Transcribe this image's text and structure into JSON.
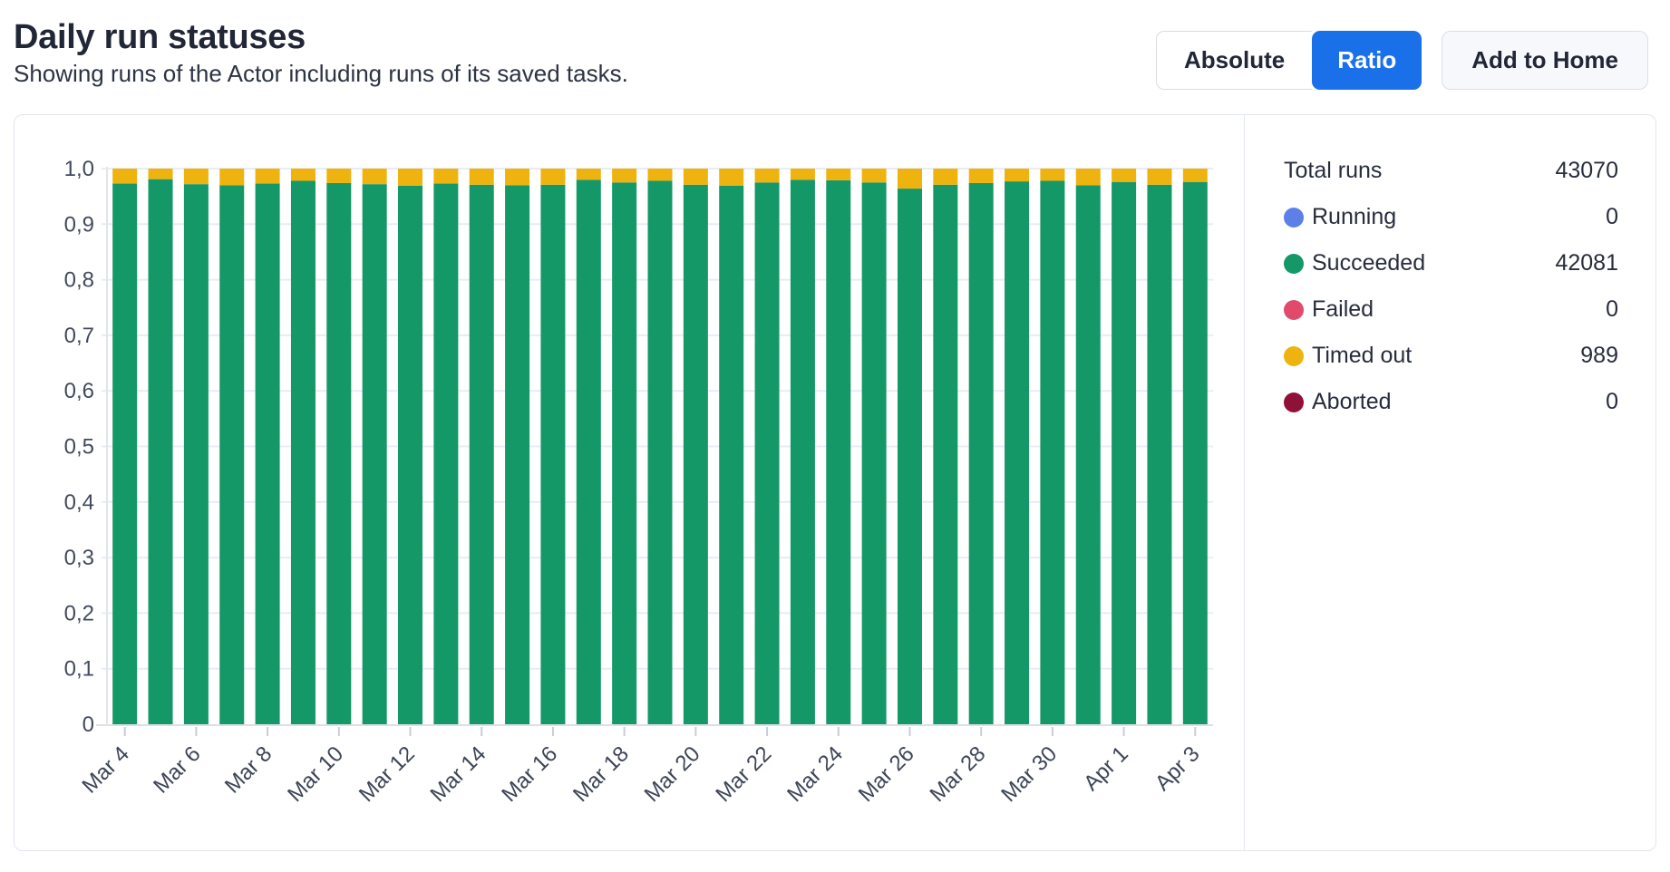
{
  "header": {
    "title": "Daily run statuses",
    "subtitle": "Showing runs of the Actor including runs of its saved tasks."
  },
  "controls": {
    "absolute_label": "Absolute",
    "ratio_label": "Ratio",
    "selected_view": "Ratio",
    "add_to_home_label": "Add to Home",
    "accent_color": "#1a70e8"
  },
  "legend": {
    "total_label": "Total runs",
    "total_value": "43070",
    "items": [
      {
        "label": "Running",
        "value": "0",
        "color": "#5c80e8"
      },
      {
        "label": "Succeeded",
        "value": "42081",
        "color": "#149868"
      },
      {
        "label": "Failed",
        "value": "0",
        "color": "#e24a6c"
      },
      {
        "label": "Timed out",
        "value": "989",
        "color": "#efb30f"
      },
      {
        "label": "Aborted",
        "value": "0",
        "color": "#911038"
      }
    ]
  },
  "chart_data": {
    "type": "bar",
    "stacked": true,
    "mode": "ratio",
    "title": "Daily run statuses",
    "xlabel": "",
    "ylabel": "",
    "ylim": [
      0,
      1
    ],
    "grid": "horizontal",
    "decimal_separator": ",",
    "categories": [
      "Mar 4",
      "Mar 5",
      "Mar 6",
      "Mar 7",
      "Mar 8",
      "Mar 9",
      "Mar 10",
      "Mar 11",
      "Mar 12",
      "Mar 13",
      "Mar 14",
      "Mar 15",
      "Mar 16",
      "Mar 17",
      "Mar 18",
      "Mar 19",
      "Mar 20",
      "Mar 21",
      "Mar 22",
      "Mar 23",
      "Mar 24",
      "Mar 25",
      "Mar 26",
      "Mar 27",
      "Mar 28",
      "Mar 29",
      "Mar 30",
      "Mar 31",
      "Apr 1",
      "Apr 2",
      "Apr 3"
    ],
    "series": [
      {
        "name": "Succeeded",
        "color": "#149868",
        "values": [
          0.973,
          0.981,
          0.972,
          0.97,
          0.973,
          0.978,
          0.974,
          0.972,
          0.969,
          0.973,
          0.971,
          0.97,
          0.971,
          0.98,
          0.975,
          0.978,
          0.971,
          0.969,
          0.975,
          0.98,
          0.979,
          0.975,
          0.964,
          0.971,
          0.974,
          0.977,
          0.978,
          0.97,
          0.976,
          0.971,
          0.976
        ]
      },
      {
        "name": "Timed out",
        "color": "#efb30f",
        "values": [
          0.027,
          0.019,
          0.028,
          0.03,
          0.027,
          0.022,
          0.026,
          0.028,
          0.031,
          0.027,
          0.029,
          0.03,
          0.029,
          0.02,
          0.025,
          0.022,
          0.029,
          0.031,
          0.025,
          0.02,
          0.021,
          0.025,
          0.036,
          0.029,
          0.026,
          0.023,
          0.022,
          0.03,
          0.024,
          0.029,
          0.024
        ]
      }
    ],
    "x_tick_labels": [
      "Mar 4",
      "Mar 6",
      "Mar 8",
      "Mar 10",
      "Mar 12",
      "Mar 14",
      "Mar 16",
      "Mar 18",
      "Mar 20",
      "Mar 22",
      "Mar 24",
      "Mar 26",
      "Mar 28",
      "Mar 30",
      "Apr 1",
      "Apr 3"
    ],
    "y_tick_labels": [
      "0",
      "0,1",
      "0,2",
      "0,3",
      "0,4",
      "0,5",
      "0,6",
      "0,7",
      "0,8",
      "0,9",
      "1,0"
    ],
    "legend_position": "right"
  }
}
